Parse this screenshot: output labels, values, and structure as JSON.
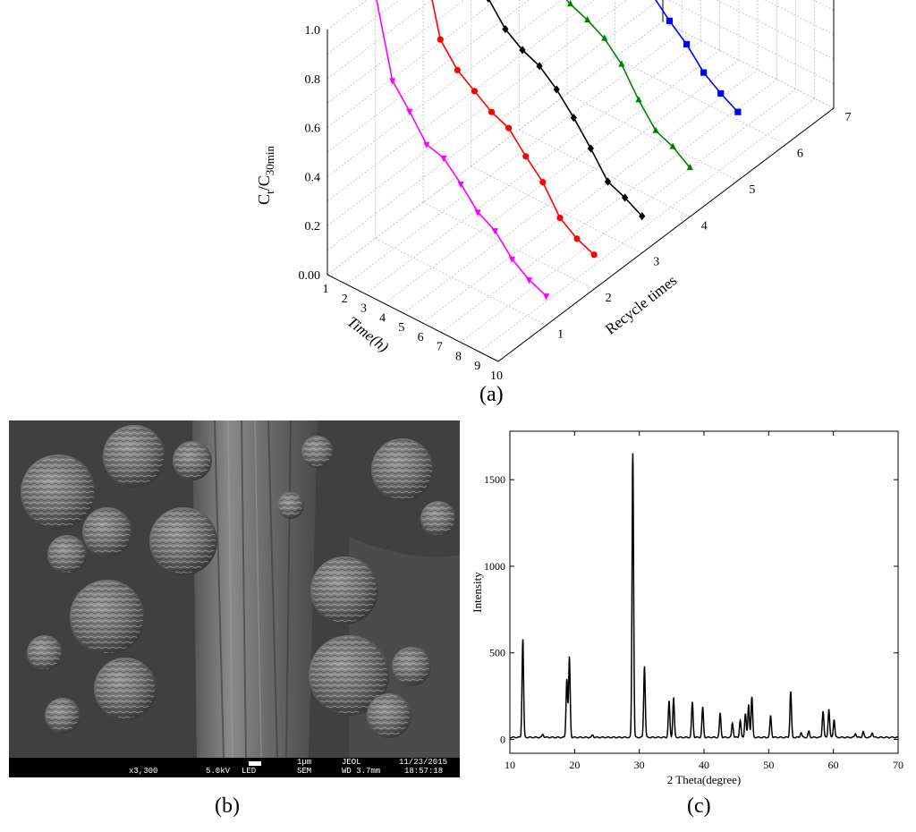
{
  "panels": {
    "a": {
      "label": "(a)"
    },
    "b": {
      "label": "(b)"
    },
    "c": {
      "label": "(c)"
    }
  },
  "chart_data": [
    {
      "type": "line",
      "projection": "3d",
      "ylabel_main": "C",
      "ylabel_sub1": "t",
      "ylabel_mid": "/C",
      "ylabel_sub2": "30min",
      "xlabel": "Time(h)",
      "zlabel": "Recycle times",
      "yticks": [
        "0.00",
        "0.2",
        "0.4",
        "0.6",
        "0.8",
        "1.0"
      ],
      "xticks": [
        "1",
        "2",
        "3",
        "4",
        "5",
        "6",
        "7",
        "8",
        "9",
        "10"
      ],
      "zticks": [
        "1",
        "2",
        "3",
        "4",
        "5",
        "6",
        "7"
      ],
      "ylim": [
        0,
        1.0
      ],
      "xlim": [
        1,
        10
      ],
      "zlim": [
        0,
        7
      ],
      "grid": true,
      "series": [
        {
          "recycle": 1,
          "color": "#ff00ff",
          "marker": "triangle-down",
          "values": [
            1.0,
            0.68,
            0.59,
            0.49,
            0.47,
            0.4,
            0.32,
            0.28,
            0.2,
            0.15,
            0.12
          ]
        },
        {
          "recycle": 2,
          "color": "#ff0000",
          "marker": "circle",
          "values": [
            1.0,
            0.7,
            0.61,
            0.56,
            0.51,
            0.48,
            0.4,
            0.33,
            0.22,
            0.17,
            0.14
          ]
        },
        {
          "recycle": 3,
          "color": "#000000",
          "marker": "diamond",
          "values": [
            1.0,
            0.72,
            0.63,
            0.58,
            0.55,
            0.49,
            0.41,
            0.32,
            0.22,
            0.19,
            0.15
          ]
        },
        {
          "recycle": 4,
          "color": "#008000",
          "marker": "triangle-up",
          "values": [
            1.0,
            0.74,
            0.66,
            0.62,
            0.59,
            0.55,
            0.48,
            0.37,
            0.28,
            0.25,
            0.2
          ]
        },
        {
          "recycle": 5,
          "color": "#0000ff",
          "marker": "square",
          "values": [
            1.0,
            0.79,
            0.71,
            0.67,
            0.63,
            0.58,
            0.51,
            0.45,
            0.37,
            0.32,
            0.28
          ]
        }
      ]
    },
    {
      "type": "line",
      "xlabel": "2 Theta(degree)",
      "ylabel": "Intensity",
      "xlim": [
        10,
        70
      ],
      "ylim": [
        -80,
        1780
      ],
      "xticks": [
        10,
        20,
        30,
        40,
        50,
        60,
        70
      ],
      "yticks": [
        0,
        500,
        1000,
        1500
      ],
      "color": "#000000",
      "baseline": 12,
      "peaks": [
        {
          "x": 12.0,
          "y": 580
        },
        {
          "x": 15.1,
          "y": 30
        },
        {
          "x": 18.8,
          "y": 350
        },
        {
          "x": 19.2,
          "y": 475
        },
        {
          "x": 22.8,
          "y": 25
        },
        {
          "x": 29.0,
          "y": 1655
        },
        {
          "x": 30.8,
          "y": 425
        },
        {
          "x": 34.6,
          "y": 220
        },
        {
          "x": 35.3,
          "y": 240
        },
        {
          "x": 38.2,
          "y": 215
        },
        {
          "x": 39.8,
          "y": 185
        },
        {
          "x": 42.5,
          "y": 150
        },
        {
          "x": 44.4,
          "y": 95
        },
        {
          "x": 45.6,
          "y": 110
        },
        {
          "x": 46.4,
          "y": 150
        },
        {
          "x": 46.9,
          "y": 200
        },
        {
          "x": 47.4,
          "y": 245
        },
        {
          "x": 50.3,
          "y": 135
        },
        {
          "x": 53.4,
          "y": 275
        },
        {
          "x": 55.0,
          "y": 40
        },
        {
          "x": 56.2,
          "y": 45
        },
        {
          "x": 58.4,
          "y": 165
        },
        {
          "x": 59.3,
          "y": 175
        },
        {
          "x": 60.1,
          "y": 115
        },
        {
          "x": 63.4,
          "y": 35
        },
        {
          "x": 64.6,
          "y": 45
        },
        {
          "x": 66.0,
          "y": 40
        }
      ]
    }
  ],
  "sem": {
    "scale_label": "1µm",
    "magnification": "x3,300",
    "voltage": "5.0kV",
    "detector": "LED",
    "mode": "SEM",
    "maker": "JEOL",
    "wd": "WD 3.7mm",
    "date": "11/23/2015",
    "time": "18:57:18"
  }
}
